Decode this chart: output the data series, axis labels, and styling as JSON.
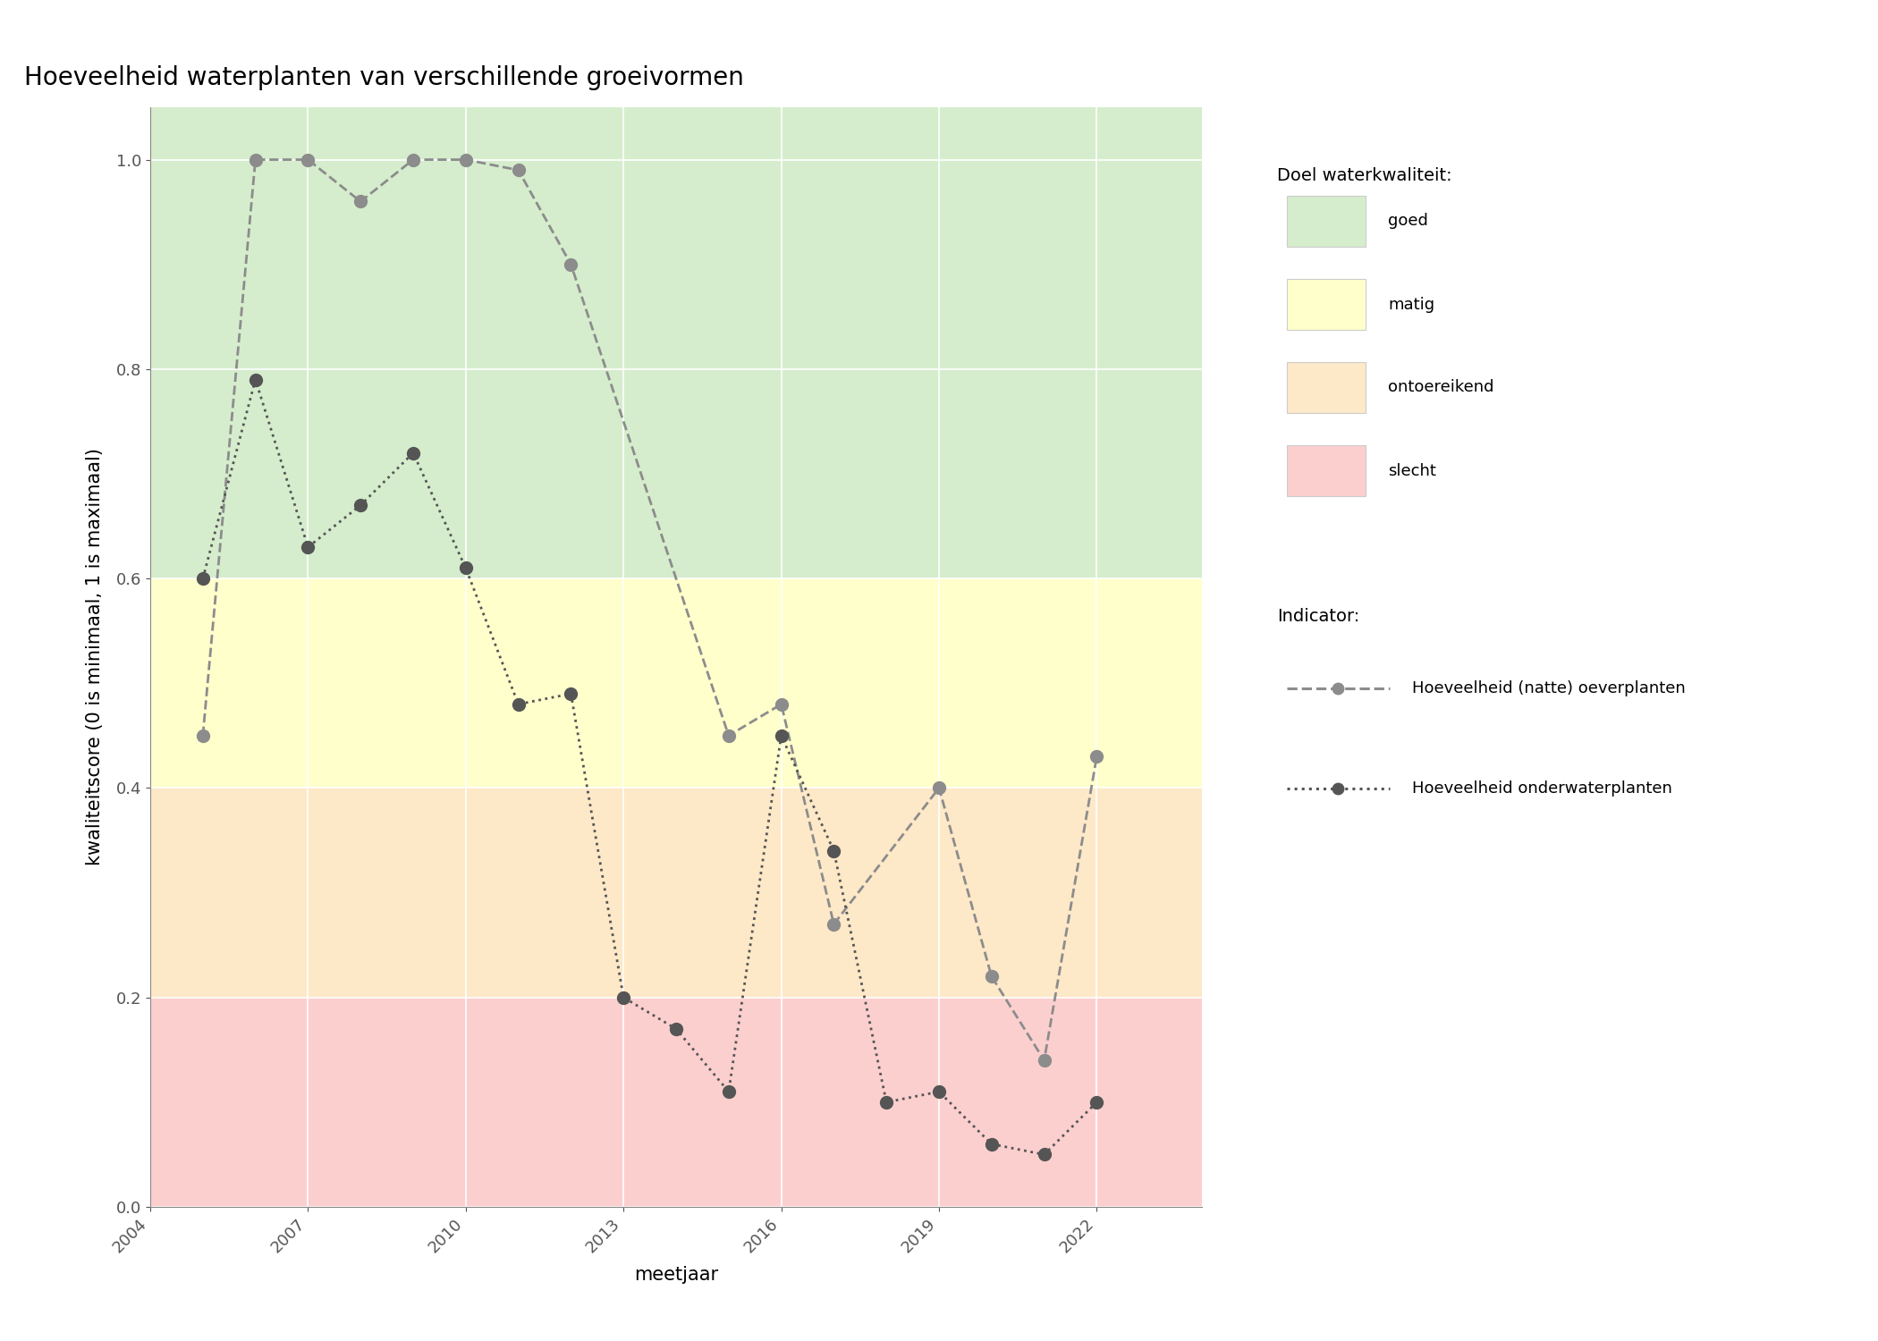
{
  "title": "Hoeveelheid waterplanten van verschillende groeivormen",
  "xlabel": "meetjaar",
  "ylabel": "kwaliteitscore (0 is minimaal, 1 is maximaal)",
  "xlim": [
    2004,
    2024
  ],
  "ylim": [
    0.0,
    1.05
  ],
  "yticks": [
    0.0,
    0.2,
    0.4,
    0.6,
    0.8,
    1.0
  ],
  "xticks": [
    2004,
    2007,
    2010,
    2013,
    2016,
    2019,
    2022
  ],
  "zones": [
    {
      "label": "goed",
      "ymin": 0.6,
      "ymax": 1.05,
      "color": "#d5edcc"
    },
    {
      "label": "matig",
      "ymin": 0.4,
      "ymax": 0.6,
      "color": "#ffffcc"
    },
    {
      "label": "ontoereikend",
      "ymin": 0.2,
      "ymax": 0.4,
      "color": "#fde8c8"
    },
    {
      "label": "slecht",
      "ymin": 0.0,
      "ymax": 0.2,
      "color": "#fccfcf"
    }
  ],
  "series": [
    {
      "name": "Hoeveelheid (natte) oeverplanten",
      "x": [
        2005,
        2006,
        2007,
        2008,
        2009,
        2010,
        2011,
        2012,
        2015,
        2016,
        2017,
        2019,
        2020,
        2021,
        2022
      ],
      "y": [
        0.45,
        1.0,
        1.0,
        0.96,
        1.0,
        1.0,
        0.99,
        0.9,
        0.45,
        0.48,
        0.27,
        0.4,
        0.22,
        0.14,
        0.43
      ],
      "color": "#8c8c8c",
      "linestyle": "--",
      "linewidth": 2.0,
      "markersize": 10,
      "zorder": 3
    },
    {
      "name": "Hoeveelheid onderwaterplanten",
      "x": [
        2005,
        2006,
        2007,
        2008,
        2009,
        2010,
        2011,
        2012,
        2013,
        2014,
        2015,
        2016,
        2017,
        2018,
        2019,
        2020,
        2021,
        2022
      ],
      "y": [
        0.6,
        0.79,
        0.63,
        0.67,
        0.72,
        0.61,
        0.48,
        0.49,
        0.2,
        0.17,
        0.11,
        0.45,
        0.34,
        0.1,
        0.11,
        0.06,
        0.05,
        0.1
      ],
      "color": "#555555",
      "linestyle": ":",
      "linewidth": 2.0,
      "markersize": 10,
      "zorder": 4
    }
  ],
  "legend_title_quality": "Doel waterkwaliteit:",
  "legend_title_indicator": "Indicator:",
  "title_fontsize": 20,
  "label_fontsize": 15,
  "tick_fontsize": 13,
  "legend_fontsize": 13
}
